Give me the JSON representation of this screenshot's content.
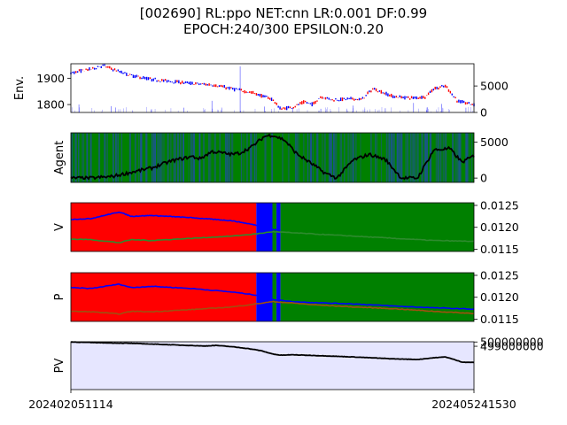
{
  "title": {
    "line1": "[002690] RL:ppo NET:cnn LR:0.001 DF:0.99",
    "line2": "EPOCH:240/300 EPSILON:0.20"
  },
  "colors": {
    "price_up": "#ff0000",
    "price_down": "#0000ff",
    "volume": "#0000ff",
    "agent_bg": "#008000",
    "agent_band": "#1f4fa0",
    "line": "#000000",
    "v_blue": "#0000ff",
    "v_green": "#2e8b2e",
    "region_red": "#ff0000",
    "region_blue": "#0000ff",
    "region_green": "#008000",
    "pv_fill": "#e6e6ff"
  },
  "chart_data": [
    {
      "type": "line",
      "panel": "env",
      "ylabel": "Env.",
      "yticks_left": [
        "1800",
        "1900"
      ],
      "ylim_left": [
        1770,
        1955
      ],
      "yticks_right": [
        "0",
        "5000"
      ],
      "ylim_right": [
        0,
        9200
      ],
      "series": [
        {
          "values_x": [
            0,
            0.05,
            0.08,
            0.12,
            0.15,
            0.2,
            0.25,
            0.3,
            0.35,
            0.4,
            0.45,
            0.5,
            0.52,
            0.55,
            0.58,
            0.6,
            0.62,
            0.65,
            0.7,
            0.72,
            0.75,
            0.8,
            0.85,
            0.88,
            0.9,
            0.93,
            0.96,
            1.0
          ],
          "values_y": [
            1920,
            1935,
            1948,
            1925,
            1910,
            1895,
            1888,
            1880,
            1875,
            1860,
            1845,
            1820,
            1783,
            1790,
            1810,
            1800,
            1830,
            1818,
            1822,
            1818,
            1860,
            1830,
            1825,
            1830,
            1860,
            1870,
            1812,
            1800
          ]
        }
      ],
      "volume": {
        "values_x": [
          0.02,
          0.1,
          0.2,
          0.28,
          0.35,
          0.42,
          0.48,
          0.55,
          0.62,
          0.7,
          0.78,
          0.85,
          0.92,
          0.98
        ],
        "values_y": [
          1500,
          1200,
          600,
          900,
          2200,
          8700,
          1100,
          900,
          700,
          1300,
          800,
          1800,
          1600,
          900
        ]
      }
    },
    {
      "type": "line",
      "panel": "agent",
      "ylabel": "Agent",
      "yticks_right": [
        "0",
        "5000"
      ],
      "ylim_right": [
        -600,
        6300
      ],
      "values_x": [
        0,
        0.05,
        0.1,
        0.15,
        0.2,
        0.25,
        0.3,
        0.32,
        0.35,
        0.4,
        0.42,
        0.45,
        0.48,
        0.5,
        0.53,
        0.56,
        0.6,
        0.63,
        0.66,
        0.7,
        0.74,
        0.78,
        0.82,
        0.86,
        0.9,
        0.94,
        0.97,
        1.0
      ],
      "values_y": [
        0,
        0,
        200,
        800,
        1400,
        2400,
        3000,
        2700,
        3700,
        3300,
        3500,
        4400,
        5800,
        6000,
        5300,
        3400,
        1900,
        700,
        0,
        2500,
        3300,
        2600,
        0,
        0,
        3900,
        4100,
        2200,
        3100
      ]
    },
    {
      "type": "line",
      "panel": "value",
      "ylabel": "V",
      "yticks_right": [
        "0.0115",
        "0.0120",
        "0.0125"
      ],
      "ylim_right": [
        0.01145,
        0.01256
      ],
      "regions": [
        {
          "from": 0,
          "to": 0.46,
          "color": "red"
        },
        {
          "from": 0.46,
          "to": 0.5,
          "color": "blue"
        },
        {
          "from": 0.5,
          "to": 0.51,
          "color": "green"
        },
        {
          "from": 0.51,
          "to": 0.52,
          "color": "blue"
        },
        {
          "from": 0.52,
          "to": 1.0,
          "color": "green"
        }
      ],
      "series": [
        {
          "name": "",
          "values_x": [
            0,
            0.05,
            0.12,
            0.15,
            0.2,
            0.3,
            0.4,
            0.46,
            0.5,
            0.52
          ],
          "values_y": [
            0.01218,
            0.0122,
            0.01235,
            0.01225,
            0.01227,
            0.01222,
            0.01215,
            0.01205,
            0.01195,
            0.01193
          ]
        },
        {
          "name": "",
          "values_x": [
            0,
            0.05,
            0.12,
            0.15,
            0.2,
            0.3,
            0.4,
            0.46,
            0.5,
            0.6,
            0.7,
            0.8,
            0.9,
            1.0
          ],
          "values_y": [
            0.01173,
            0.01172,
            0.01165,
            0.01172,
            0.0117,
            0.01175,
            0.0118,
            0.01185,
            0.0119,
            0.01185,
            0.0118,
            0.01175,
            0.0117,
            0.01168
          ]
        }
      ]
    },
    {
      "type": "line",
      "panel": "policy",
      "ylabel": "P",
      "yticks_right": [
        "0.0115",
        "0.0120",
        "0.0125"
      ],
      "ylim_right": [
        0.01145,
        0.01256
      ],
      "regions": [
        {
          "from": 0,
          "to": 0.46,
          "color": "red"
        },
        {
          "from": 0.46,
          "to": 0.5,
          "color": "blue"
        },
        {
          "from": 0.5,
          "to": 0.51,
          "color": "green"
        },
        {
          "from": 0.51,
          "to": 0.52,
          "color": "blue"
        },
        {
          "from": 0.52,
          "to": 1.0,
          "color": "green"
        }
      ],
      "series": [
        {
          "name": "",
          "values_x": [
            0,
            0.05,
            0.12,
            0.15,
            0.2,
            0.3,
            0.4,
            0.46,
            0.5,
            0.55,
            0.6,
            0.7,
            0.8,
            0.9,
            1.0
          ],
          "values_y": [
            0.01222,
            0.0122,
            0.0123,
            0.01222,
            0.01225,
            0.0122,
            0.01212,
            0.01205,
            0.01195,
            0.0119,
            0.01188,
            0.01185,
            0.0118,
            0.01176,
            0.01173
          ]
        },
        {
          "name": "",
          "values_x": [
            0,
            0.05,
            0.12,
            0.15,
            0.2,
            0.3,
            0.4,
            0.46,
            0.5,
            0.55,
            0.6,
            0.7,
            0.8,
            0.9,
            1.0
          ],
          "values_y": [
            0.01168,
            0.01167,
            0.01162,
            0.01168,
            0.01167,
            0.01172,
            0.01178,
            0.01185,
            0.0119,
            0.01187,
            0.01183,
            0.01178,
            0.01174,
            0.01168,
            0.01163
          ]
        }
      ]
    },
    {
      "type": "area",
      "panel": "pv",
      "ylabel": "PV",
      "yticks_right": [
        "499000000",
        "500000000"
      ],
      "ylim_right": [
        488850000,
        500050000
      ],
      "values_x": [
        0,
        0.05,
        0.1,
        0.15,
        0.2,
        0.25,
        0.3,
        0.33,
        0.36,
        0.4,
        0.44,
        0.47,
        0.5,
        0.52,
        0.55,
        0.6,
        0.7,
        0.8,
        0.86,
        0.9,
        0.93,
        0.97,
        1.0
      ],
      "values_y": [
        500000000,
        499880000,
        499770000,
        499680000,
        499520000,
        499330000,
        499170000,
        499050000,
        499200000,
        498890000,
        498450000,
        498000000,
        497200000,
        496900000,
        497000000,
        496850000,
        496500000,
        496050000,
        495900000,
        496300000,
        496500000,
        495300000,
        495200000
      ]
    }
  ],
  "xaxis": {
    "start_label": "202402051114",
    "end_label": "202405241530"
  }
}
